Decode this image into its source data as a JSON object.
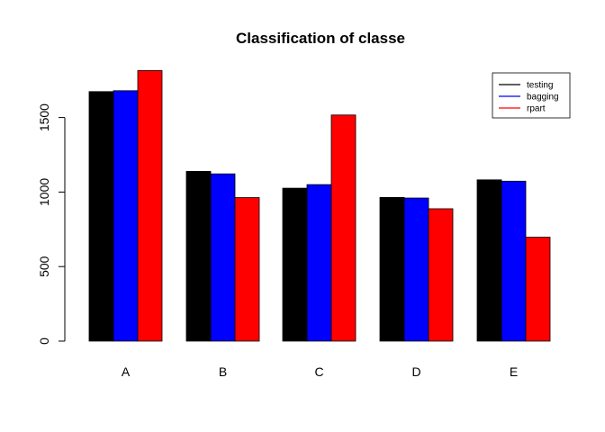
{
  "chart_data": {
    "type": "bar",
    "title": "Classification of classe",
    "xlabel": "",
    "ylabel": "",
    "categories": [
      "A",
      "B",
      "C",
      "D",
      "E"
    ],
    "series": [
      {
        "name": "testing",
        "color": "#000000",
        "values": [
          1674,
          1139,
          1026,
          964,
          1082
        ]
      },
      {
        "name": "bagging",
        "color": "#0000ff",
        "values": [
          1680,
          1122,
          1050,
          960,
          1073
        ]
      },
      {
        "name": "rpart",
        "color": "#ff0000",
        "values": [
          1815,
          963,
          1517,
          888,
          697
        ]
      }
    ],
    "ylim": [
      0,
      1815
    ],
    "yticks": [
      0,
      500,
      1000,
      1500
    ],
    "ytick_labels": [
      "0",
      "500",
      "1000",
      "1500"
    ],
    "grid": false,
    "legend_position": "top-right"
  }
}
